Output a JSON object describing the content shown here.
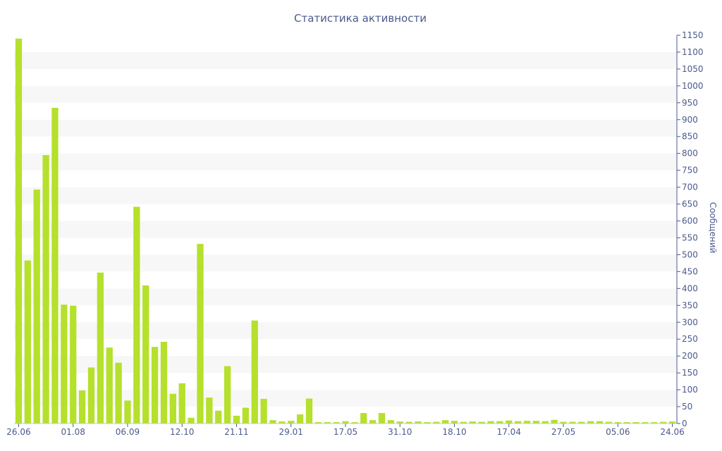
{
  "chart_data": {
    "type": "bar",
    "title": "Статистика активности",
    "ylabel": "Сообщений",
    "xlabel": "",
    "ylim": [
      0,
      1150
    ],
    "y_ticks": [
      0,
      50,
      100,
      150,
      200,
      250,
      300,
      350,
      400,
      450,
      500,
      550,
      600,
      650,
      700,
      750,
      800,
      850,
      900,
      950,
      1000,
      1050,
      1100,
      1150
    ],
    "y_axis_position": "right",
    "grid": "alternating horizontal bands",
    "legend": "none",
    "x_tick_labels": [
      {
        "label": "26.06",
        "index": 0
      },
      {
        "label": "01.08",
        "index": 6
      },
      {
        "label": "06.09",
        "index": 12
      },
      {
        "label": "12.10",
        "index": 18
      },
      {
        "label": "21.11",
        "index": 24
      },
      {
        "label": "29.01",
        "index": 30
      },
      {
        "label": "17.05",
        "index": 36
      },
      {
        "label": "31.10",
        "index": 42
      },
      {
        "label": "18.10",
        "index": 48
      },
      {
        "label": "17.04",
        "index": 54
      },
      {
        "label": "27.05",
        "index": 60
      },
      {
        "label": "05.06",
        "index": 66
      },
      {
        "label": "24.06",
        "index": 72
      }
    ],
    "values": [
      1140,
      483,
      693,
      795,
      935,
      352,
      349,
      98,
      166,
      447,
      225,
      180,
      68,
      642,
      409,
      227,
      242,
      88,
      119,
      17,
      532,
      77,
      38,
      170,
      23,
      47,
      305,
      73,
      10,
      6,
      8,
      27,
      74,
      4,
      4,
      4,
      7,
      4,
      31,
      10,
      31,
      10,
      6,
      5,
      6,
      4,
      5,
      10,
      8,
      5,
      6,
      5,
      7,
      7,
      9,
      7,
      8,
      8,
      7,
      11,
      5,
      5,
      5,
      7,
      7,
      5,
      4,
      4,
      4,
      4,
      4,
      5,
      6
    ],
    "bar_color": "#b5e02c",
    "band_color": "#f7f7f7"
  }
}
